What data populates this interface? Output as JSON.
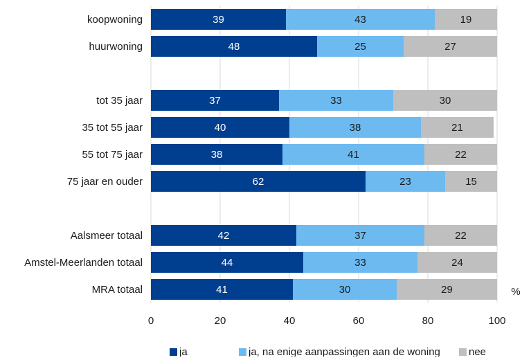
{
  "chart_data": {
    "type": "bar",
    "orientation": "horizontal",
    "stacked": true,
    "unit_label": "%",
    "xlim": [
      0,
      100
    ],
    "x_ticks": [
      0,
      20,
      40,
      60,
      80,
      100
    ],
    "grid": true,
    "legend_position": "bottom",
    "categories": [
      "koopwoning",
      "huurwoning",
      "",
      "tot 35 jaar",
      "35 tot 55 jaar",
      "55 tot 75 jaar",
      "75 jaar en ouder",
      "",
      "Aalsmeer totaal",
      "Amstel-Meerlanden totaal",
      "MRA totaal"
    ],
    "series": [
      {
        "name": "ja",
        "color": "#003f8f",
        "label_color": "#ffffff",
        "values": [
          39,
          48,
          null,
          37,
          40,
          38,
          62,
          null,
          42,
          44,
          41
        ]
      },
      {
        "name": "ja, na enige aanpassingen aan de woning",
        "color": "#6cbaf0",
        "label_color": "#1a1a1a",
        "values": [
          43,
          25,
          null,
          33,
          38,
          41,
          23,
          null,
          37,
          33,
          30
        ]
      },
      {
        "name": "nee",
        "color": "#bfbfbf",
        "label_color": "#1a1a1a",
        "values": [
          19,
          27,
          null,
          30,
          21,
          22,
          15,
          null,
          22,
          24,
          29
        ]
      }
    ]
  }
}
